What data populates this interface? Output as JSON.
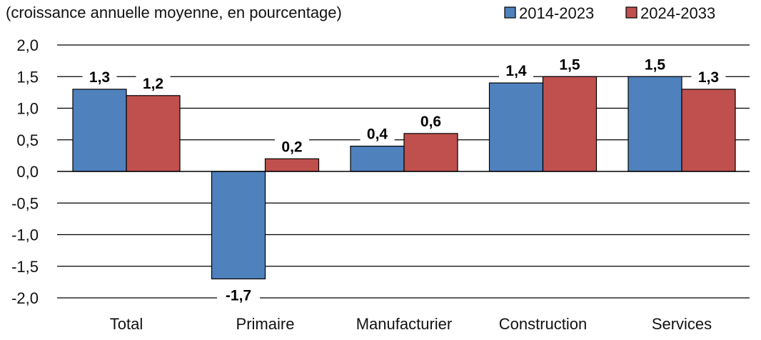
{
  "chart_data": {
    "type": "bar",
    "subtitle": "(croissance annuelle moyenne, en pourcentage)",
    "categories": [
      "Total",
      "Primaire",
      "Manufacturier",
      "Construction",
      "Services"
    ],
    "series": [
      {
        "name": "2014-2023",
        "color": "#4F81BD",
        "values": [
          1.3,
          -1.7,
          0.4,
          1.4,
          1.5
        ],
        "labels": [
          "1,3",
          "-1,7",
          "0,4",
          "1,4",
          "1,5"
        ]
      },
      {
        "name": "2024-2033",
        "color": "#C0504D",
        "values": [
          1.2,
          0.2,
          0.6,
          1.5,
          1.3
        ],
        "labels": [
          "1,2",
          "0,2",
          "0,6",
          "1,5",
          "1,3"
        ]
      }
    ],
    "ylim": [
      -2.0,
      2.0
    ],
    "yticks": [
      2.0,
      1.5,
      1.0,
      0.5,
      0.0,
      -0.5,
      -1.0,
      -1.5,
      -2.0
    ],
    "ytick_labels": [
      "2,0",
      "1,5",
      "1,0",
      "0,5",
      "0,0",
      "-0,5",
      "-1,0",
      "-1,5",
      "-2,0"
    ],
    "grid": true,
    "legend_position": "top-right"
  }
}
